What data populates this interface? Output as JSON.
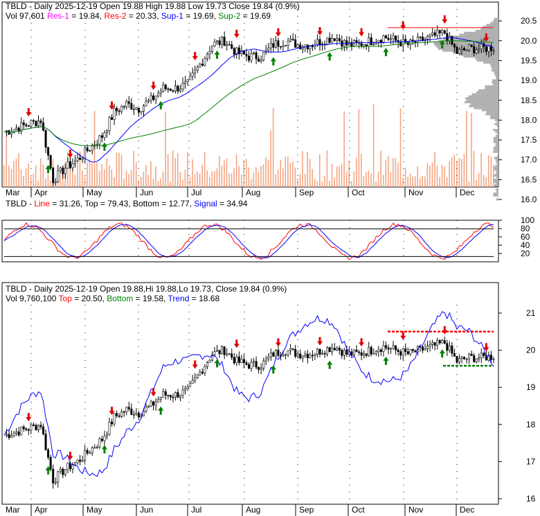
{
  "ticker": "TBLD",
  "price_panel": {
    "title": "TBLD - Daily 2025-12-19 Open 19.88  High 19.88  Low 19.73  Close 19.84 (0.9%)",
    "vol": "Vol 97,601",
    "res1_label": "Res-1",
    "res1_value": "= 19.84,",
    "res2_label": "Res-2",
    "res2_value": "= 20.33,",
    "sup1_label": "Sup-1",
    "sup1_value": "= 19.69,",
    "sup2_label": "Sup-2",
    "sup2_value": "= 19.69",
    "y_ticks": [
      "20.5",
      "20.0",
      "19.5",
      "19.0",
      "18.5",
      "18.0",
      "17.5",
      "17.0",
      "16.5",
      "16.0"
    ]
  },
  "oscillator_panel": {
    "title": "TBLD - ",
    "line_label": "Line",
    "line_value": "= 31.26,",
    "top_text": "Top = 79.43, Bottom = 12.77,",
    "signal_label": "Signal",
    "signal_value": "= 34.94",
    "y_ticks": [
      "100",
      "80",
      "60",
      "40",
      "20"
    ]
  },
  "trend_panel": {
    "title": "TBLD - Daily 2025-12-19 Open 19.88,Hi 19.88,Lo 19.73, Close 19.84 (0.9%)",
    "vol": "Vol 9,760,100",
    "top_label": "Top",
    "top_value": "= 20.50,",
    "bottom_label": "Bottom",
    "bottom_value": "= 19.58,",
    "trend_label": "Trend",
    "trend_value": "= 18.68",
    "y_ticks": [
      "21",
      "20",
      "19",
      "18",
      "17",
      "16"
    ]
  },
  "months": [
    "Mar",
    "Apr",
    "May",
    "Jun",
    "Jul",
    "Aug",
    "Sep",
    "Oct",
    "Nov",
    "Dec"
  ],
  "colors": {
    "up": "#000000",
    "res1": "#ff00ff",
    "res2": "#ff0000",
    "sup1": "#0000ff",
    "sup2": "#008000",
    "volume": "#f4a582",
    "profile": "#b0b0b0",
    "arrow_down": "#e00000",
    "arrow_up": "#008000"
  },
  "chart_data": {
    "type": "candlestick",
    "ylim_price": [
      16.0,
      20.6
    ],
    "weekly_close": [
      17.7,
      17.8,
      17.9,
      18.0,
      16.5,
      16.8,
      17.0,
      17.3,
      17.6,
      18.2,
      18.4,
      18.3,
      18.5,
      18.8,
      18.8,
      18.9,
      19.4,
      19.9,
      20.0,
      19.7,
      19.6,
      19.6,
      19.9,
      20.0,
      19.9,
      19.9,
      20.0,
      20.1,
      19.9,
      19.9,
      20.0,
      20.1,
      20.0,
      19.9,
      20.0,
      20.1,
      20.2,
      19.7,
      19.8,
      19.8,
      19.84
    ],
    "oscillator": {
      "line": 31.26,
      "top": 79.43,
      "bottom": 12.77,
      "signal": 34.94,
      "ylim": [
        0,
        100
      ]
    },
    "trend_levels": {
      "top": 20.5,
      "bottom": 19.58,
      "trend": 18.68,
      "ylim": [
        15.9,
        21.5
      ]
    }
  }
}
